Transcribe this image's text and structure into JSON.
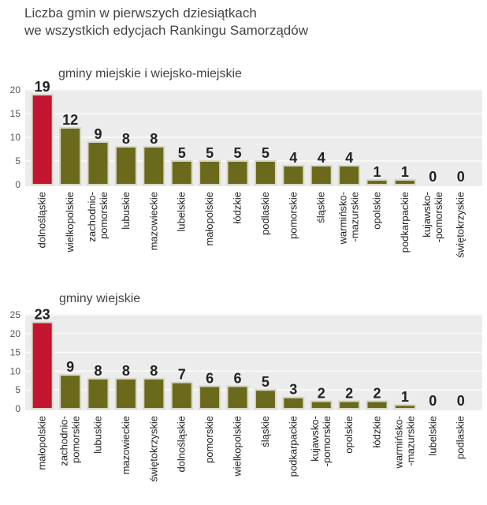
{
  "title_lines": [
    "Liczba gmin w pierwszych dziesiątkach",
    "we wszystkich edycjach Rankingu Samorządów"
  ],
  "colors": {
    "highlight": "#c31432",
    "bar": "#6b6a1c",
    "bar_outline": "#d8d8c8",
    "panel": "#ececec",
    "grid": "#f8f8f8"
  },
  "chart_data": [
    {
      "type": "bar",
      "title": "gminy miejskie i wiejsko-miejskie",
      "categories": [
        [
          "dolnośląskie"
        ],
        [
          "wielkopolskie"
        ],
        [
          "zachodnio-",
          "pomorskie"
        ],
        [
          "lubuskie"
        ],
        [
          "mazowieckie"
        ],
        [
          "lubelskie"
        ],
        [
          "małopolskie"
        ],
        [
          "łódzkie"
        ],
        [
          "podlaskie"
        ],
        [
          "pomorskie"
        ],
        [
          "śląskie"
        ],
        [
          "warmińsko-",
          "-mazurskie"
        ],
        [
          "opolskie"
        ],
        [
          "podkarpackie"
        ],
        [
          "kujawsko-",
          "-pomorskie"
        ],
        [
          "świętokrzyskie"
        ]
      ],
      "values": [
        19,
        12,
        9,
        8,
        8,
        5,
        5,
        5,
        5,
        4,
        4,
        4,
        1,
        1,
        0,
        0
      ],
      "highlight_index": 0,
      "yticks": [
        0,
        5,
        10,
        15,
        20
      ],
      "ylim": [
        0,
        20
      ]
    },
    {
      "type": "bar",
      "title": "gminy wiejskie",
      "categories": [
        [
          "małopolskie"
        ],
        [
          "zachodnio-",
          "pomorskie"
        ],
        [
          "lubuskie"
        ],
        [
          "mazowieckie"
        ],
        [
          "świętokrzyskie"
        ],
        [
          "dolnośląskie"
        ],
        [
          "pomorskie"
        ],
        [
          "wielkopolskie"
        ],
        [
          "śląskie"
        ],
        [
          "podkarpackie"
        ],
        [
          "kujawsko-",
          "-pomorskie"
        ],
        [
          "opolskie"
        ],
        [
          "łódzkie"
        ],
        [
          "warmińsko-",
          "-mazurskie"
        ],
        [
          "lubelskie"
        ],
        [
          "podlaskie"
        ]
      ],
      "values": [
        23,
        9,
        8,
        8,
        8,
        7,
        6,
        6,
        5,
        3,
        2,
        2,
        2,
        1,
        0,
        0
      ],
      "highlight_index": 0,
      "yticks": [
        0,
        5,
        10,
        15,
        20,
        25
      ],
      "ylim": [
        0,
        25
      ]
    }
  ]
}
